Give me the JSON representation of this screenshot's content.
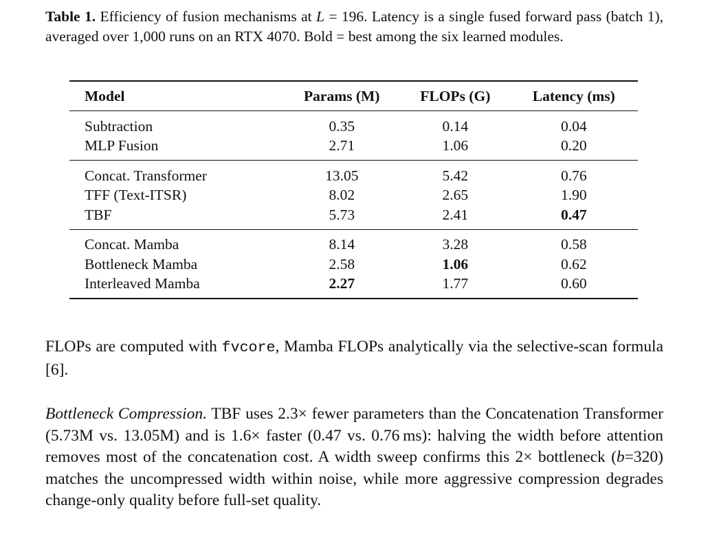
{
  "caption": {
    "label": "Table 1.",
    "parts": [
      {
        "text": "Efficiency of fusion mechanisms at "
      },
      {
        "text": "L",
        "style": "italic"
      },
      {
        "text": " = 196. Latency is a single fused forward pass (batch 1), averaged over 1,000 runs on an RTX 4070. Bold = best among the six learned modules."
      }
    ]
  },
  "table": {
    "header": [
      "Model",
      "Params (M)",
      "FLOPs (G)",
      "Latency (ms)"
    ],
    "groups": [
      {
        "rows": [
          [
            "Subtraction",
            "0.35",
            "0.14",
            "0.04"
          ],
          [
            "MLP Fusion",
            "2.71",
            "1.06",
            "0.20"
          ]
        ]
      },
      {
        "rows": [
          [
            "Concat. Transformer",
            "13.05",
            "5.42",
            "0.76"
          ],
          [
            "TFF (Text-ITSR)",
            "8.02",
            "2.65",
            "1.90"
          ],
          [
            "TBF",
            "5.73",
            "2.41",
            {
              "text": "0.47",
              "bold": true
            }
          ]
        ]
      },
      {
        "rows": [
          [
            "Concat. Mamba",
            "8.14",
            "3.28",
            "0.58"
          ],
          [
            "Bottleneck Mamba",
            "2.58",
            {
              "text": "1.06",
              "bold": true
            },
            "0.62"
          ],
          [
            "Interleaved Mamba",
            {
              "text": "2.27",
              "bold": true
            },
            "1.77",
            "0.60"
          ]
        ]
      }
    ]
  },
  "paragraphs": [
    [
      {
        "text": "FLOPs are computed with "
      },
      {
        "text": "fvcore",
        "style": "mono"
      },
      {
        "text": ", Mamba FLOPs analytically via the selective-­scan formula [6]."
      }
    ],
    [
      {
        "text": "Bottleneck Compression.",
        "style": "italic"
      },
      {
        "text": " TBF uses 2.3× fewer parameters than the Concate­nation Transformer (5.73M vs. 13.05M) and is 1.6× faster (0.47 vs. 0.76 ms): halving the width before attention removes most of the concatenation cost. A width sweep confirms this 2× bottleneck ("
      },
      {
        "text": "b",
        "style": "italic"
      },
      {
        "text": "=320) matches the uncompressed width within noise, while more aggressive compression degrades change-only quality before full-set quality."
      }
    ]
  ]
}
